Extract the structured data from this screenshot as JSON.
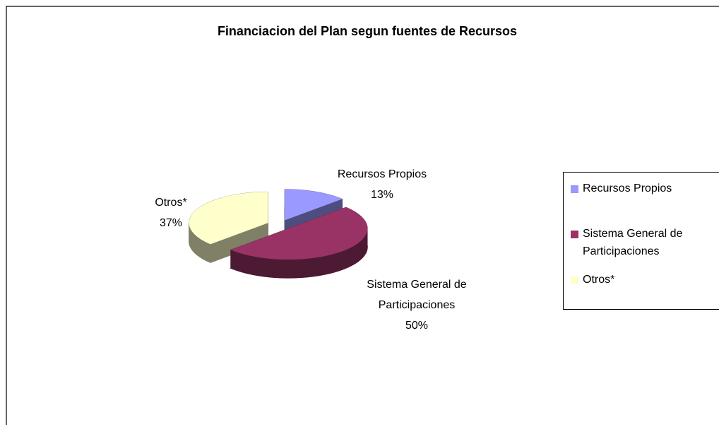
{
  "chart_data": {
    "type": "pie",
    "title": "Financiacion del Plan segun fuentes de Recursos",
    "categories": [
      "Recursos Propios",
      "Sistema General de Participaciones",
      "Otros*"
    ],
    "values": [
      13,
      50,
      37
    ],
    "value_labels": [
      "13%",
      "50%",
      "37%"
    ],
    "colors": [
      "#9999ff",
      "#993366",
      "#ffffcc"
    ],
    "legend": "right"
  }
}
